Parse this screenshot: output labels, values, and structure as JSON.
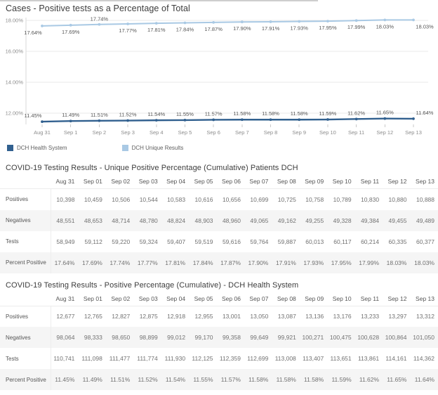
{
  "chart_data": [
    {
      "type": "line",
      "title": "Cases - Positive tests as a Percentage of Total",
      "x": [
        "Aug 31",
        "Sep 1",
        "Sep 2",
        "Sep 3",
        "Sep 4",
        "Sep 5",
        "Sep 6",
        "Sep 7",
        "Sep 8",
        "Sep 9",
        "Sep 10",
        "Sep 11",
        "Sep 12",
        "Sep 13"
      ],
      "ylabel": "",
      "xlabel": "",
      "ylim": [
        11.2,
        18.35
      ],
      "grid": "horizontal",
      "legend_position": "bottom-left",
      "y_ticks": [
        {
          "value": 18,
          "label": "18.00%"
        },
        {
          "value": 16,
          "label": "16.00%"
        },
        {
          "value": 14,
          "label": "14.00%"
        },
        {
          "value": 12,
          "label": "12.00%"
        }
      ],
      "series": [
        {
          "name": "DCH Unique Results",
          "color": "#a9c9e4",
          "values": [
            17.64,
            17.69,
            17.74,
            17.77,
            17.81,
            17.84,
            17.87,
            17.9,
            17.91,
            17.93,
            17.95,
            17.99,
            18.03,
            18.03
          ],
          "labels": [
            "17.64%",
            "17.69%",
            "17.74%",
            "17.77%",
            "17.81%",
            "17.84%",
            "17.87%",
            "17.90%",
            "17.91%",
            "17.93%",
            "17.95%",
            "17.99%",
            "18.03%",
            "18.03%"
          ],
          "label_side": "below",
          "label_above_indices": [
            2
          ]
        },
        {
          "name": "DCH Health System",
          "color": "#31608f",
          "values": [
            11.45,
            11.49,
            11.51,
            11.52,
            11.54,
            11.55,
            11.57,
            11.58,
            11.58,
            11.58,
            11.59,
            11.62,
            11.65,
            11.64
          ],
          "labels": [
            "11.45%",
            "11.49%",
            "11.51%",
            "11.52%",
            "11.54%",
            "11.55%",
            "11.57%",
            "11.58%",
            "11.58%",
            "11.58%",
            "11.59%",
            "11.62%",
            "11.65%",
            "11.64%"
          ],
          "label_side": "above",
          "label_above_indices": []
        }
      ],
      "legend": [
        {
          "label": "DCH Health System",
          "color": "#31608f"
        },
        {
          "label": "DCH Unique Results",
          "color": "#a9c9e4"
        }
      ]
    },
    {
      "type": "table",
      "title": "COVID-19 Testing Results - Unique Positive Percentage (Cumulative) Patients DCH",
      "columns": [
        "Aug 31",
        "Sep 01",
        "Sep 02",
        "Sep 03",
        "Sep 04",
        "Sep 05",
        "Sep 06",
        "Sep 07",
        "Sep 08",
        "Sep 09",
        "Sep 10",
        "Sep 11",
        "Sep 12",
        "Sep 13"
      ],
      "rows": [
        {
          "label": "Positives",
          "values": [
            "10,398",
            "10,459",
            "10,506",
            "10,544",
            "10,583",
            "10,616",
            "10,656",
            "10,699",
            "10,725",
            "10,758",
            "10,789",
            "10,830",
            "10,880",
            "10,888"
          ]
        },
        {
          "label": "Negatives",
          "values": [
            "48,551",
            "48,653",
            "48,714",
            "48,780",
            "48,824",
            "48,903",
            "48,960",
            "49,065",
            "49,162",
            "49,255",
            "49,328",
            "49,384",
            "49,455",
            "49,489"
          ]
        },
        {
          "label": "Tests",
          "values": [
            "58,949",
            "59,112",
            "59,220",
            "59,324",
            "59,407",
            "59,519",
            "59,616",
            "59,764",
            "59,887",
            "60,013",
            "60,117",
            "60,214",
            "60,335",
            "60,377"
          ]
        },
        {
          "label": "Percent Positive",
          "values": [
            "17.64%",
            "17.69%",
            "17.74%",
            "17.77%",
            "17.81%",
            "17.84%",
            "17.87%",
            "17.90%",
            "17.91%",
            "17.93%",
            "17.95%",
            "17.99%",
            "18.03%",
            "18.03%"
          ]
        }
      ]
    },
    {
      "type": "table",
      "title": "COVID-19 Testing Results - Positive Percentage (Cumulative) - DCH Health System",
      "columns": [
        "Aug 31",
        "Sep 01",
        "Sep 02",
        "Sep 03",
        "Sep 04",
        "Sep 05",
        "Sep 06",
        "Sep 07",
        "Sep 08",
        "Sep 09",
        "Sep 10",
        "Sep 11",
        "Sep 12",
        "Sep 13"
      ],
      "rows": [
        {
          "label": "Positives",
          "values": [
            "12,677",
            "12,765",
            "12,827",
            "12,875",
            "12,918",
            "12,955",
            "13,001",
            "13,050",
            "13,087",
            "13,136",
            "13,176",
            "13,233",
            "13,297",
            "13,312"
          ]
        },
        {
          "label": "Negatives",
          "values": [
            "98,064",
            "98,333",
            "98,650",
            "98,899",
            "99,012",
            "99,170",
            "99,358",
            "99,649",
            "99,921",
            "100,271",
            "100,475",
            "100,628",
            "100,864",
            "101,050"
          ]
        },
        {
          "label": "Tests",
          "values": [
            "110,741",
            "111,098",
            "111,477",
            "111,774",
            "111,930",
            "112,125",
            "112,359",
            "112,699",
            "113,008",
            "113,407",
            "113,651",
            "113,861",
            "114,161",
            "114,362"
          ]
        },
        {
          "label": "Percent Positive",
          "values": [
            "11.45%",
            "11.49%",
            "11.51%",
            "11.52%",
            "11.54%",
            "11.55%",
            "11.57%",
            "11.58%",
            "11.58%",
            "11.58%",
            "11.59%",
            "11.62%",
            "11.65%",
            "11.64%"
          ]
        }
      ]
    }
  ],
  "colors": {
    "health_system_line": "#31608f",
    "unique_results_line": "#a9c9e4",
    "row_band": "#f5f5f5",
    "gridline": "#e8e8e8"
  }
}
